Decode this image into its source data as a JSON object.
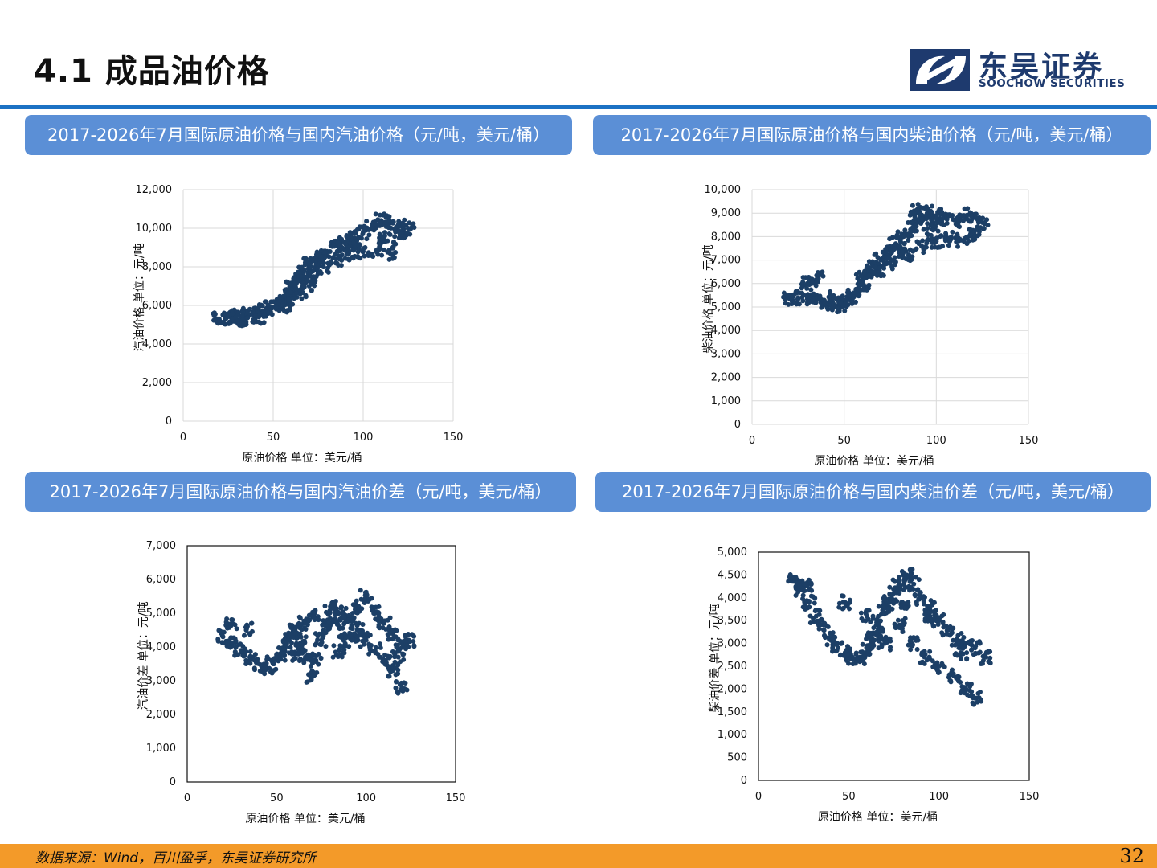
{
  "page": {
    "title": "4.1 成品油价格",
    "number": "32"
  },
  "logo": {
    "cn": "东吴证券",
    "en": "SOOCHOW SECURITIES"
  },
  "banners": [
    "2017-2026年7月国际原油价格与国内汽油价格（元/吨，美元/桶）",
    "2017-2026年7月国际原油价格与国内柴油价格（元/吨，美元/桶）",
    "2017-2026年7月国际原油价格与国内汽油价差（元/吨，美元/桶）",
    "2017-2026年7月国际原油价格与国内柴油价差（元/吨，美元/桶）"
  ],
  "footer": {
    "source": "数据来源：Wind，百川盈孚，东吴证券研究所"
  },
  "colors": {
    "marker": "#1c3f66",
    "banner": "#5b8fd6",
    "rule": "#1c72c4",
    "footer": "#f39a29"
  },
  "chart_data": [
    {
      "type": "scatter",
      "xlabel": "原油价格 单位：美元/桶",
      "ylabel": "汽油价格 单位：元/吨",
      "xlim": [
        0,
        150
      ],
      "ylim": [
        0,
        12000
      ],
      "xticks": [
        0,
        50,
        100,
        150
      ],
      "yticks": [
        0,
        2000,
        4000,
        6000,
        8000,
        10000,
        12000
      ],
      "grid": true,
      "points": [
        [
          20,
          5300
        ],
        [
          24,
          5350
        ],
        [
          28,
          5250
        ],
        [
          33,
          5300
        ],
        [
          36,
          5450
        ],
        [
          40,
          5550
        ],
        [
          44,
          5700
        ],
        [
          47,
          5850
        ],
        [
          50,
          5900
        ],
        [
          55,
          6200
        ],
        [
          58,
          6500
        ],
        [
          60,
          6900
        ],
        [
          63,
          7200
        ],
        [
          65,
          7500
        ],
        [
          67,
          7800
        ],
        [
          70,
          8100
        ],
        [
          73,
          8300
        ],
        [
          76,
          8500
        ],
        [
          80,
          8800
        ],
        [
          85,
          9100
        ],
        [
          90,
          9300
        ],
        [
          95,
          9500
        ],
        [
          100,
          9800
        ],
        [
          105,
          10200
        ],
        [
          110,
          10400
        ],
        [
          115,
          10300
        ],
        [
          120,
          10100
        ],
        [
          125,
          10000
        ],
        [
          60,
          6400
        ],
        [
          65,
          6600
        ],
        [
          70,
          7000
        ],
        [
          78,
          8000
        ],
        [
          85,
          8400
        ],
        [
          92,
          8700
        ],
        [
          100,
          8800
        ],
        [
          108,
          8900
        ],
        [
          115,
          8700
        ],
        [
          120,
          9500
        ],
        [
          30,
          5500
        ],
        [
          42,
          5400
        ],
        [
          56,
          6000
        ],
        [
          72,
          7400
        ],
        [
          88,
          9000
        ],
        [
          96,
          9200
        ],
        [
          112,
          9600
        ]
      ]
    },
    {
      "type": "scatter",
      "xlabel": "原油价格 单位：美元/桶",
      "ylabel": "柴油价格 单位：元/吨",
      "xlim": [
        0,
        150
      ],
      "ylim": [
        0,
        10000
      ],
      "xticks": [
        0,
        50,
        100,
        150
      ],
      "yticks": [
        0,
        1000,
        2000,
        3000,
        4000,
        5000,
        6000,
        7000,
        8000,
        9000,
        10000
      ],
      "grid": true,
      "points": [
        [
          20,
          5400
        ],
        [
          25,
          5400
        ],
        [
          30,
          5350
        ],
        [
          35,
          5300
        ],
        [
          40,
          5200
        ],
        [
          45,
          5050
        ],
        [
          48,
          5100
        ],
        [
          52,
          5300
        ],
        [
          55,
          5600
        ],
        [
          60,
          6000
        ],
        [
          63,
          6400
        ],
        [
          66,
          6700
        ],
        [
          70,
          7000
        ],
        [
          74,
          7400
        ],
        [
          78,
          7700
        ],
        [
          82,
          8000
        ],
        [
          86,
          8300
        ],
        [
          90,
          8600
        ],
        [
          95,
          8800
        ],
        [
          100,
          8900
        ],
        [
          105,
          8800
        ],
        [
          110,
          8700
        ],
        [
          115,
          8900
        ],
        [
          120,
          8800
        ],
        [
          125,
          8600
        ],
        [
          30,
          6000
        ],
        [
          36,
          6200
        ],
        [
          60,
          6200
        ],
        [
          68,
          6500
        ],
        [
          75,
          6900
        ],
        [
          85,
          7200
        ],
        [
          92,
          7600
        ],
        [
          100,
          7800
        ],
        [
          108,
          7900
        ],
        [
          115,
          7800
        ],
        [
          120,
          8000
        ],
        [
          88,
          9100
        ],
        [
          95,
          9000
        ],
        [
          45,
          5400
        ],
        [
          55,
          5500
        ],
        [
          80,
          7400
        ],
        [
          98,
          8300
        ]
      ]
    },
    {
      "type": "scatter",
      "xlabel": "原油价格 单位：美元/桶",
      "ylabel": "汽油价差 单位：元/吨",
      "xlim": [
        0,
        150
      ],
      "ylim": [
        0,
        7000
      ],
      "xticks": [
        0,
        50,
        100,
        150
      ],
      "yticks": [
        0,
        1000,
        2000,
        3000,
        4000,
        5000,
        6000,
        7000
      ],
      "grid": false,
      "points": [
        [
          20,
          4300
        ],
        [
          25,
          4100
        ],
        [
          30,
          3900
        ],
        [
          35,
          3700
        ],
        [
          40,
          3500
        ],
        [
          44,
          3400
        ],
        [
          48,
          3500
        ],
        [
          52,
          3800
        ],
        [
          55,
          4000
        ],
        [
          58,
          4300
        ],
        [
          60,
          4500
        ],
        [
          63,
          4100
        ],
        [
          66,
          3700
        ],
        [
          69,
          3100
        ],
        [
          72,
          3600
        ],
        [
          75,
          4200
        ],
        [
          78,
          4600
        ],
        [
          82,
          4800
        ],
        [
          86,
          5000
        ],
        [
          90,
          4800
        ],
        [
          95,
          5200
        ],
        [
          100,
          5500
        ],
        [
          105,
          5000
        ],
        [
          110,
          4700
        ],
        [
          115,
          4400
        ],
        [
          120,
          4100
        ],
        [
          124,
          4200
        ],
        [
          100,
          4200
        ],
        [
          105,
          3900
        ],
        [
          110,
          3600
        ],
        [
          115,
          3300
        ],
        [
          120,
          2800
        ],
        [
          70,
          4900
        ],
        [
          80,
          5200
        ],
        [
          88,
          4400
        ],
        [
          95,
          4500
        ],
        [
          60,
          3800
        ],
        [
          65,
          4700
        ],
        [
          85,
          3900
        ],
        [
          92,
          4200
        ],
        [
          25,
          4700
        ],
        [
          33,
          4500
        ],
        [
          118,
          3700
        ]
      ]
    },
    {
      "type": "scatter",
      "xlabel": "原油价格 单位：美元/桶",
      "ylabel": "柴油价差 单位：元/吨",
      "xlim": [
        0,
        150
      ],
      "ylim": [
        0,
        5000
      ],
      "xticks": [
        0,
        50,
        100,
        150
      ],
      "yticks": [
        0,
        500,
        1000,
        1500,
        2000,
        2500,
        3000,
        3500,
        4000,
        4500,
        5000
      ],
      "grid": false,
      "points": [
        [
          20,
          4400
        ],
        [
          24,
          4200
        ],
        [
          28,
          3900
        ],
        [
          32,
          3600
        ],
        [
          36,
          3300
        ],
        [
          40,
          3100
        ],
        [
          44,
          2900
        ],
        [
          48,
          2800
        ],
        [
          52,
          2700
        ],
        [
          56,
          2700
        ],
        [
          60,
          2900
        ],
        [
          63,
          3100
        ],
        [
          66,
          3400
        ],
        [
          69,
          3700
        ],
        [
          72,
          3900
        ],
        [
          75,
          4100
        ],
        [
          78,
          4300
        ],
        [
          82,
          4500
        ],
        [
          86,
          4300
        ],
        [
          90,
          4000
        ],
        [
          95,
          3800
        ],
        [
          100,
          3500
        ],
        [
          105,
          3300
        ],
        [
          110,
          3100
        ],
        [
          115,
          3000
        ],
        [
          120,
          2900
        ],
        [
          126,
          2700
        ],
        [
          60,
          3600
        ],
        [
          65,
          3200
        ],
        [
          70,
          3000
        ],
        [
          78,
          3400
        ],
        [
          85,
          3000
        ],
        [
          92,
          2700
        ],
        [
          100,
          2500
        ],
        [
          108,
          2300
        ],
        [
          115,
          2000
        ],
        [
          120,
          1800
        ],
        [
          26,
          4300
        ],
        [
          48,
          3900
        ],
        [
          80,
          3800
        ],
        [
          95,
          3600
        ],
        [
          112,
          2800
        ]
      ]
    }
  ]
}
